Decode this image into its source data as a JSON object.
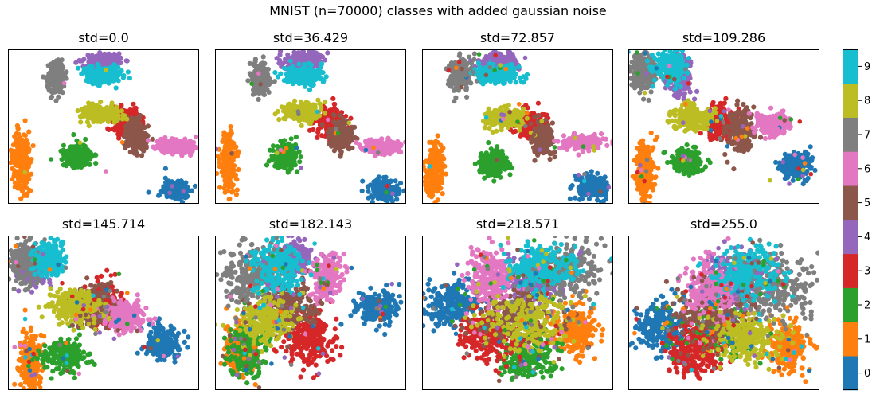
{
  "figure": {
    "title": "MNIST (n=70000) classes with added gaussian noise"
  },
  "palette": [
    "#1f77b4",
    "#ff7f0e",
    "#2ca02c",
    "#d62728",
    "#9467bd",
    "#8c564b",
    "#e377c2",
    "#7f7f7f",
    "#bcbd22",
    "#17becf"
  ],
  "chart_data": {
    "type": "scatter",
    "classes": [
      "0",
      "1",
      "2",
      "3",
      "4",
      "5",
      "6",
      "7",
      "8",
      "9"
    ],
    "colorbar": {
      "ticks": [
        "0",
        "1",
        "2",
        "3",
        "4",
        "5",
        "6",
        "7",
        "8",
        "9"
      ],
      "range": [
        -0.5,
        9.5
      ]
    },
    "panels": [
      {
        "title": "std=0.0",
        "std": 0.0,
        "clusters": [
          {
            "label": 0,
            "cx": 0.88,
            "cy": 0.91,
            "rx": 0.065,
            "ry": 0.06
          },
          {
            "label": 1,
            "cx": 0.07,
            "cy": 0.73,
            "rx": 0.04,
            "ry": 0.17
          },
          {
            "label": 2,
            "cx": 0.36,
            "cy": 0.69,
            "rx": 0.06,
            "ry": 0.065
          },
          {
            "label": 3,
            "cx": 0.62,
            "cy": 0.47,
            "rx": 0.07,
            "ry": 0.08
          },
          {
            "label": 4,
            "cx": 0.51,
            "cy": 0.08,
            "rx": 0.09,
            "ry": 0.05
          },
          {
            "label": 5,
            "cx": 0.67,
            "cy": 0.56,
            "rx": 0.05,
            "ry": 0.09
          },
          {
            "label": 6,
            "cx": 0.88,
            "cy": 0.63,
            "rx": 0.09,
            "ry": 0.04
          },
          {
            "label": 7,
            "cx": 0.25,
            "cy": 0.19,
            "rx": 0.04,
            "ry": 0.09
          },
          {
            "label": 8,
            "cx": 0.48,
            "cy": 0.42,
            "rx": 0.09,
            "ry": 0.05
          },
          {
            "label": 9,
            "cx": 0.5,
            "cy": 0.17,
            "rx": 0.09,
            "ry": 0.05
          }
        ]
      },
      {
        "title": "std=36.429",
        "std": 36.429,
        "clusters": [
          {
            "label": 0,
            "cx": 0.88,
            "cy": 0.91,
            "rx": 0.065,
            "ry": 0.06
          },
          {
            "label": 1,
            "cx": 0.07,
            "cy": 0.73,
            "rx": 0.04,
            "ry": 0.17
          },
          {
            "label": 2,
            "cx": 0.37,
            "cy": 0.69,
            "rx": 0.06,
            "ry": 0.065
          },
          {
            "label": 3,
            "cx": 0.61,
            "cy": 0.47,
            "rx": 0.07,
            "ry": 0.08
          },
          {
            "label": 4,
            "cx": 0.46,
            "cy": 0.08,
            "rx": 0.09,
            "ry": 0.05
          },
          {
            "label": 5,
            "cx": 0.66,
            "cy": 0.56,
            "rx": 0.05,
            "ry": 0.09
          },
          {
            "label": 6,
            "cx": 0.87,
            "cy": 0.63,
            "rx": 0.09,
            "ry": 0.04
          },
          {
            "label": 7,
            "cx": 0.24,
            "cy": 0.19,
            "rx": 0.04,
            "ry": 0.09
          },
          {
            "label": 8,
            "cx": 0.46,
            "cy": 0.41,
            "rx": 0.09,
            "ry": 0.05
          },
          {
            "label": 9,
            "cx": 0.46,
            "cy": 0.17,
            "rx": 0.09,
            "ry": 0.05
          }
        ]
      },
      {
        "title": "std=72.857",
        "std": 72.857,
        "clusters": [
          {
            "label": 0,
            "cx": 0.89,
            "cy": 0.89,
            "rx": 0.065,
            "ry": 0.065
          },
          {
            "label": 1,
            "cx": 0.07,
            "cy": 0.78,
            "rx": 0.04,
            "ry": 0.17
          },
          {
            "label": 2,
            "cx": 0.37,
            "cy": 0.74,
            "rx": 0.06,
            "ry": 0.07
          },
          {
            "label": 3,
            "cx": 0.57,
            "cy": 0.5,
            "rx": 0.07,
            "ry": 0.08
          },
          {
            "label": 4,
            "cx": 0.4,
            "cy": 0.08,
            "rx": 0.09,
            "ry": 0.05
          },
          {
            "label": 5,
            "cx": 0.63,
            "cy": 0.58,
            "rx": 0.05,
            "ry": 0.1
          },
          {
            "label": 6,
            "cx": 0.84,
            "cy": 0.6,
            "rx": 0.09,
            "ry": 0.04
          },
          {
            "label": 7,
            "cx": 0.2,
            "cy": 0.17,
            "rx": 0.05,
            "ry": 0.09
          },
          {
            "label": 8,
            "cx": 0.43,
            "cy": 0.44,
            "rx": 0.09,
            "ry": 0.055
          },
          {
            "label": 9,
            "cx": 0.39,
            "cy": 0.16,
            "rx": 0.09,
            "ry": 0.05
          }
        ]
      },
      {
        "title": "std=109.286",
        "std": 109.286,
        "clusters": [
          {
            "label": 0,
            "cx": 0.88,
            "cy": 0.75,
            "rx": 0.07,
            "ry": 0.07
          },
          {
            "label": 1,
            "cx": 0.09,
            "cy": 0.79,
            "rx": 0.045,
            "ry": 0.16
          },
          {
            "label": 2,
            "cx": 0.31,
            "cy": 0.73,
            "rx": 0.07,
            "ry": 0.07
          },
          {
            "label": 3,
            "cx": 0.48,
            "cy": 0.48,
            "rx": 0.07,
            "ry": 0.1
          },
          {
            "label": 4,
            "cx": 0.27,
            "cy": 0.16,
            "rx": 0.05,
            "ry": 0.12
          },
          {
            "label": 5,
            "cx": 0.59,
            "cy": 0.52,
            "rx": 0.06,
            "ry": 0.12
          },
          {
            "label": 6,
            "cx": 0.76,
            "cy": 0.48,
            "rx": 0.08,
            "ry": 0.06
          },
          {
            "label": 7,
            "cx": 0.08,
            "cy": 0.15,
            "rx": 0.06,
            "ry": 0.1
          },
          {
            "label": 8,
            "cx": 0.33,
            "cy": 0.44,
            "rx": 0.1,
            "ry": 0.07
          },
          {
            "label": 9,
            "cx": 0.22,
            "cy": 0.11,
            "rx": 0.07,
            "ry": 0.1
          }
        ]
      },
      {
        "title": "std=145.714",
        "std": 145.714,
        "clusters": [
          {
            "label": 0,
            "cx": 0.81,
            "cy": 0.69,
            "rx": 0.08,
            "ry": 0.09
          },
          {
            "label": 1,
            "cx": 0.12,
            "cy": 0.83,
            "rx": 0.05,
            "ry": 0.17
          },
          {
            "label": 2,
            "cx": 0.3,
            "cy": 0.78,
            "rx": 0.1,
            "ry": 0.09
          },
          {
            "label": 3,
            "cx": 0.5,
            "cy": 0.45,
            "rx": 0.07,
            "ry": 0.12
          },
          {
            "label": 4,
            "cx": 0.13,
            "cy": 0.2,
            "rx": 0.07,
            "ry": 0.1
          },
          {
            "label": 5,
            "cx": 0.44,
            "cy": 0.45,
            "rx": 0.1,
            "ry": 0.12
          },
          {
            "label": 6,
            "cx": 0.62,
            "cy": 0.52,
            "rx": 0.09,
            "ry": 0.08
          },
          {
            "label": 7,
            "cx": 0.08,
            "cy": 0.17,
            "rx": 0.07,
            "ry": 0.12
          },
          {
            "label": 8,
            "cx": 0.35,
            "cy": 0.46,
            "rx": 0.12,
            "ry": 0.1
          },
          {
            "label": 9,
            "cx": 0.22,
            "cy": 0.16,
            "rx": 0.07,
            "ry": 0.1
          }
        ]
      },
      {
        "title": "std=182.143",
        "std": 182.143,
        "clusters": [
          {
            "label": 0,
            "cx": 0.85,
            "cy": 0.46,
            "rx": 0.1,
            "ry": 0.1
          },
          {
            "label": 1,
            "cx": 0.13,
            "cy": 0.71,
            "rx": 0.07,
            "ry": 0.15
          },
          {
            "label": 2,
            "cx": 0.17,
            "cy": 0.72,
            "rx": 0.09,
            "ry": 0.17
          },
          {
            "label": 3,
            "cx": 0.5,
            "cy": 0.66,
            "rx": 0.13,
            "ry": 0.16
          },
          {
            "label": 4,
            "cx": 0.42,
            "cy": 0.15,
            "rx": 0.08,
            "ry": 0.1
          },
          {
            "label": 5,
            "cx": 0.38,
            "cy": 0.46,
            "rx": 0.15,
            "ry": 0.14
          },
          {
            "label": 6,
            "cx": 0.59,
            "cy": 0.26,
            "rx": 0.07,
            "ry": 0.13
          },
          {
            "label": 7,
            "cx": 0.2,
            "cy": 0.26,
            "rx": 0.14,
            "ry": 0.18
          },
          {
            "label": 8,
            "cx": 0.27,
            "cy": 0.55,
            "rx": 0.14,
            "ry": 0.12
          },
          {
            "label": 9,
            "cx": 0.32,
            "cy": 0.2,
            "rx": 0.12,
            "ry": 0.15
          }
        ]
      },
      {
        "title": "std=218.571",
        "std": 218.571,
        "clusters": [
          {
            "label": 0,
            "cx": 0.15,
            "cy": 0.44,
            "rx": 0.13,
            "ry": 0.14
          },
          {
            "label": 1,
            "cx": 0.8,
            "cy": 0.62,
            "rx": 0.1,
            "ry": 0.13
          },
          {
            "label": 2,
            "cx": 0.55,
            "cy": 0.78,
            "rx": 0.14,
            "ry": 0.14
          },
          {
            "label": 3,
            "cx": 0.36,
            "cy": 0.66,
            "rx": 0.14,
            "ry": 0.14
          },
          {
            "label": 4,
            "cx": 0.58,
            "cy": 0.32,
            "rx": 0.13,
            "ry": 0.15
          },
          {
            "label": 5,
            "cx": 0.5,
            "cy": 0.5,
            "rx": 0.2,
            "ry": 0.17
          },
          {
            "label": 6,
            "cx": 0.35,
            "cy": 0.27,
            "rx": 0.1,
            "ry": 0.16
          },
          {
            "label": 7,
            "cx": 0.76,
            "cy": 0.22,
            "rx": 0.17,
            "ry": 0.18
          },
          {
            "label": 8,
            "cx": 0.55,
            "cy": 0.56,
            "rx": 0.19,
            "ry": 0.16
          },
          {
            "label": 9,
            "cx": 0.62,
            "cy": 0.2,
            "rx": 0.16,
            "ry": 0.14
          }
        ]
      },
      {
        "title": "std=255.0",
        "std": 255.0,
        "clusters": [
          {
            "label": 0,
            "cx": 0.16,
            "cy": 0.6,
            "rx": 0.12,
            "ry": 0.16
          },
          {
            "label": 1,
            "cx": 0.83,
            "cy": 0.71,
            "rx": 0.1,
            "ry": 0.15
          },
          {
            "label": 2,
            "cx": 0.47,
            "cy": 0.62,
            "rx": 0.16,
            "ry": 0.15
          },
          {
            "label": 3,
            "cx": 0.36,
            "cy": 0.74,
            "rx": 0.14,
            "ry": 0.16
          },
          {
            "label": 4,
            "cx": 0.54,
            "cy": 0.27,
            "rx": 0.13,
            "ry": 0.15
          },
          {
            "label": 5,
            "cx": 0.45,
            "cy": 0.5,
            "rx": 0.18,
            "ry": 0.17
          },
          {
            "label": 6,
            "cx": 0.43,
            "cy": 0.33,
            "rx": 0.12,
            "ry": 0.17
          },
          {
            "label": 7,
            "cx": 0.77,
            "cy": 0.32,
            "rx": 0.16,
            "ry": 0.2
          },
          {
            "label": 8,
            "cx": 0.62,
            "cy": 0.66,
            "rx": 0.17,
            "ry": 0.15
          },
          {
            "label": 9,
            "cx": 0.64,
            "cy": 0.24,
            "rx": 0.15,
            "ry": 0.15
          }
        ]
      }
    ]
  }
}
